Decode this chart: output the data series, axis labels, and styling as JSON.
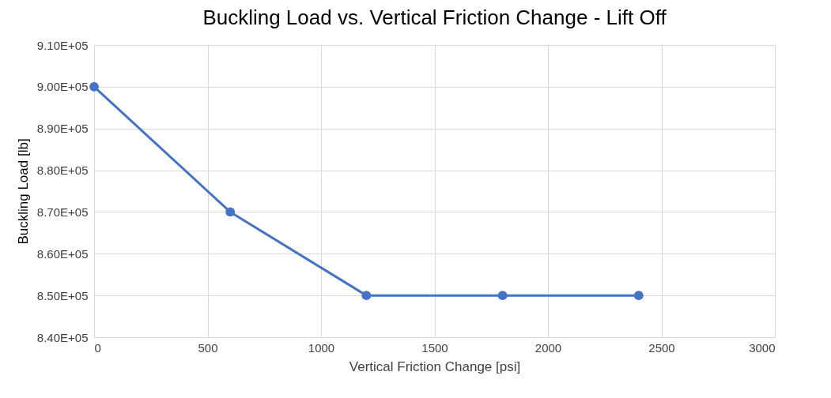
{
  "chart_data": {
    "type": "line",
    "title": "Buckling Load vs. Vertical Friction Change - Lift Off",
    "xlabel": "Vertical Friction Change [psi]",
    "ylabel": "Buckling Load [lb]",
    "x": [
      0,
      600,
      1200,
      1800,
      2400
    ],
    "series": [
      {
        "color": "#4472c4",
        "values": [
          900000,
          870000,
          850000,
          850000,
          850000
        ]
      }
    ],
    "xlim": [
      0,
      3000
    ],
    "xticks": [
      0,
      500,
      1000,
      1500,
      2000,
      2500,
      3000
    ],
    "ylim": [
      840000,
      910000
    ],
    "yticks": [
      {
        "value": 840000,
        "label": "8.40E+05"
      },
      {
        "value": 850000,
        "label": "8.50E+05"
      },
      {
        "value": 860000,
        "label": "8.60E+05"
      },
      {
        "value": 870000,
        "label": "8.70E+05"
      },
      {
        "value": 880000,
        "label": "8.80E+05"
      },
      {
        "value": 890000,
        "label": "8.90E+05"
      },
      {
        "value": 900000,
        "label": "9.00E+05"
      },
      {
        "value": 910000,
        "label": "9.10E+05"
      }
    ],
    "grid": true,
    "marker": "circle",
    "line_style": "solid"
  }
}
